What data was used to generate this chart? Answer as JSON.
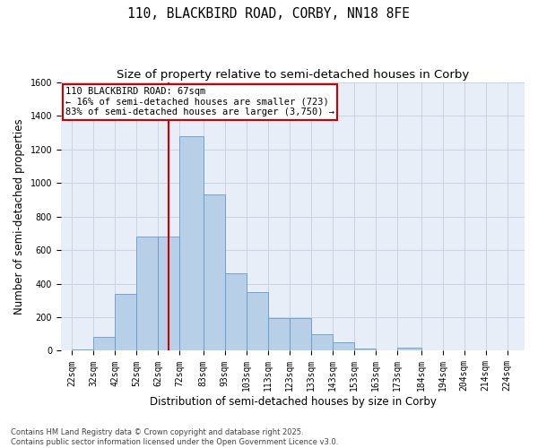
{
  "title_line1": "110, BLACKBIRD ROAD, CORBY, NN18 8FE",
  "title_line2": "Size of property relative to semi-detached houses in Corby",
  "xlabel": "Distribution of semi-detached houses by size in Corby",
  "ylabel": "Number of semi-detached properties",
  "bar_left_edges": [
    22,
    32,
    42,
    52,
    62,
    72,
    83,
    93,
    103,
    113,
    123,
    133,
    143,
    153,
    163,
    173,
    184,
    194,
    204,
    214
  ],
  "bar_widths": [
    10,
    10,
    10,
    10,
    10,
    11,
    10,
    10,
    10,
    10,
    10,
    10,
    10,
    10,
    10,
    11,
    10,
    10,
    10,
    10
  ],
  "bar_heights": [
    10,
    80,
    340,
    680,
    680,
    1280,
    930,
    460,
    350,
    195,
    195,
    100,
    50,
    15,
    0,
    20,
    0,
    0,
    0,
    0
  ],
  "bar_color": "#b8cfe8",
  "bar_edge_color": "#6699cc",
  "property_size": 67,
  "vline_color": "#cc0000",
  "annotation_text": "110 BLACKBIRD ROAD: 67sqm\n← 16% of semi-detached houses are smaller (723)\n83% of semi-detached houses are larger (3,750) →",
  "annotation_edge_color": "#cc0000",
  "ylim": [
    0,
    1600
  ],
  "xlim": [
    17,
    232
  ],
  "yticks": [
    0,
    200,
    400,
    600,
    800,
    1000,
    1200,
    1400,
    1600
  ],
  "xtick_labels": [
    "22sqm",
    "32sqm",
    "42sqm",
    "52sqm",
    "62sqm",
    "72sqm",
    "83sqm",
    "93sqm",
    "103sqm",
    "113sqm",
    "123sqm",
    "133sqm",
    "143sqm",
    "153sqm",
    "163sqm",
    "173sqm",
    "184sqm",
    "194sqm",
    "204sqm",
    "214sqm",
    "224sqm"
  ],
  "xtick_positions": [
    22,
    32,
    42,
    52,
    62,
    72,
    83,
    93,
    103,
    113,
    123,
    133,
    143,
    153,
    163,
    173,
    184,
    194,
    204,
    214,
    224
  ],
  "grid_color": "#c8d4e4",
  "background_color": "#e8eef8",
  "footer_text": "Contains HM Land Registry data © Crown copyright and database right 2025.\nContains public sector information licensed under the Open Government Licence v3.0.",
  "title_fontsize": 10.5,
  "subtitle_fontsize": 9.5,
  "axis_label_fontsize": 8.5,
  "tick_fontsize": 7,
  "annotation_fontsize": 7.5,
  "fig_width": 6.0,
  "fig_height": 5.0,
  "dpi": 100
}
